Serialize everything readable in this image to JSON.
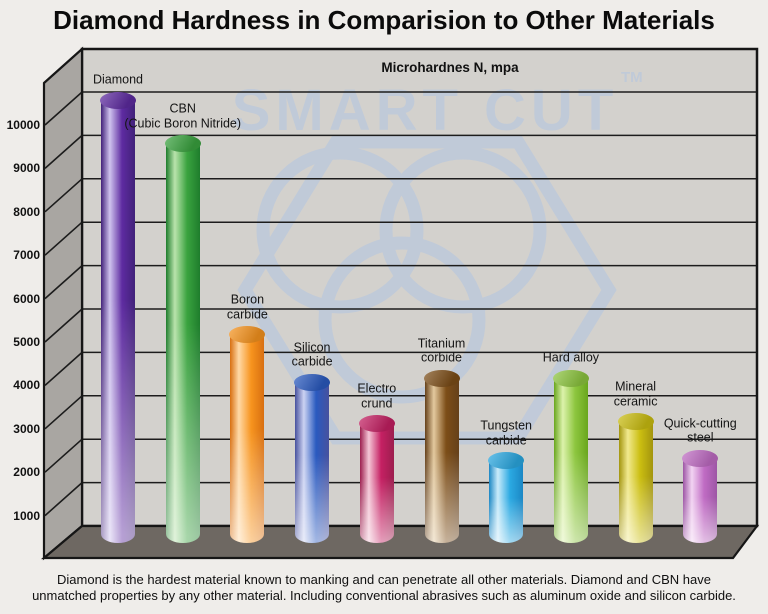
{
  "page": {
    "title": "Diamond Hardness in Comparision to Other Materials",
    "caption": "Diamond is the hardest material known to manking and can penetrate all other materials. Diamond and CBN have unmatched properties by any other material. Including conventional abrasives such as aluminum oxide and silicon carbide."
  },
  "watermark": {
    "brand": "SMART CUT",
    "tm": "TM",
    "color": "#bdc9db"
  },
  "chart_data": {
    "type": "bar",
    "title": "Microhardnes N, mpa",
    "ylabel": "Microhardnes N, mpa",
    "xlabel": "",
    "ylim": [
      0,
      10900
    ],
    "yticks": [
      1000,
      2000,
      3000,
      4000,
      5000,
      6000,
      7000,
      8000,
      9000,
      10000
    ],
    "grid": true,
    "legend_position": "none",
    "categories": [
      "Diamond",
      "CBN (Cubic Boron Nitride)",
      "Boron carbide",
      "Silicon carbide",
      "Electro crund",
      "Titanium corbide",
      "Tungsten carbide",
      "Hard alloy",
      "Mineral ceramic",
      "Quick-cutting steel"
    ],
    "values": [
      10000,
      9000,
      4600,
      3500,
      2550,
      3600,
      1700,
      3600,
      2600,
      1750
    ],
    "bars": [
      {
        "label": "Diamond",
        "display_label": "Diamond",
        "value": 10000,
        "color_edge": "#412179",
        "color_light": "#cfc3ee",
        "color_top": "#5e2ba1"
      },
      {
        "label": "CBN (Cubic Boron Nitride)",
        "display_label": "CBN\n(Cubic Boron Nitride)",
        "value": 9000,
        "color_edge": "#1e7d2c",
        "color_light": "#b9e3ac",
        "color_top": "#3aa33f"
      },
      {
        "label": "Boron carbide",
        "display_label": "Boron\ncarbide",
        "value": 4600,
        "color_edge": "#d86f10",
        "color_light": "#ffd9a6",
        "color_top": "#f7941e"
      },
      {
        "label": "Silicon carbide",
        "display_label": "Silicon\ncarbide",
        "value": 3500,
        "color_edge": "#47519e",
        "color_light": "#ccd3f2",
        "color_top": "#2a5ac0"
      },
      {
        "label": "Electro crund",
        "display_label": "Electro\ncrund",
        "value": 2550,
        "color_edge": "#9c1e4e",
        "color_light": "#f4c6d6",
        "color_top": "#c52063"
      },
      {
        "label": "Titanium corbide",
        "display_label": "Titanium\ncorbide",
        "value": 3600,
        "color_edge": "#65401a",
        "color_light": "#e3c99e",
        "color_top": "#7d4e18"
      },
      {
        "label": "Tungsten carbide",
        "display_label": "Tungsten\ncarbide",
        "value": 1700,
        "color_edge": "#1b87c4",
        "color_light": "#c9ebfa",
        "color_top": "#2ba9e2"
      },
      {
        "label": "Hard alloy",
        "display_label": "Hard alloy",
        "value": 3600,
        "color_edge": "#69a61e",
        "color_light": "#dcf2ab",
        "color_top": "#8dc63f"
      },
      {
        "label": "Mineral ceramic",
        "display_label": "Mineral\nceramic",
        "value": 2600,
        "color_edge": "#a3950e",
        "color_light": "#f1e98e",
        "color_top": "#cbbe11"
      },
      {
        "label": "Quick-cutting steel",
        "display_label": "Quick-cutting\nsteel",
        "value": 1750,
        "color_edge": "#9d56a5",
        "color_light": "#f2d3f2",
        "color_top": "#c06cc4"
      }
    ]
  }
}
